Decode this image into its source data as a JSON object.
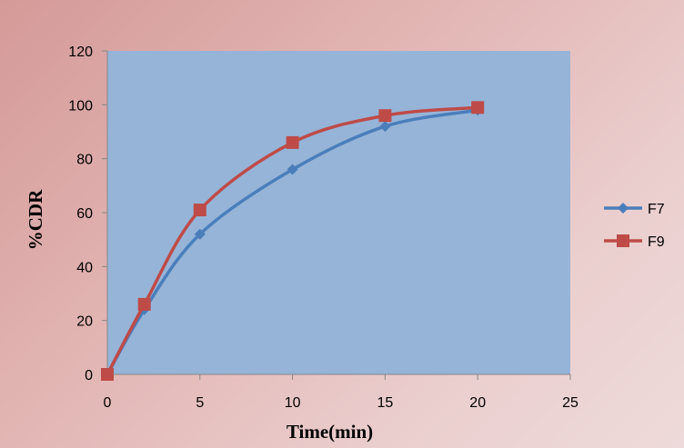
{
  "chart_data": {
    "type": "line",
    "title": "",
    "xlabel": "Time(min)",
    "ylabel": "%CDR",
    "xlim": [
      0,
      25
    ],
    "ylim": [
      0,
      120
    ],
    "xticks": [
      0,
      5,
      10,
      15,
      20,
      25
    ],
    "yticks": [
      0,
      20,
      40,
      60,
      80,
      100,
      120
    ],
    "grid": false,
    "legend_position": "right",
    "plot_background": "#96b4d8",
    "series": [
      {
        "name": "F7",
        "color": "#4a7ebb",
        "marker": "diamond",
        "points": [
          [
            0,
            0
          ],
          [
            2,
            24
          ],
          [
            5,
            52
          ],
          [
            10,
            76
          ],
          [
            15,
            92
          ],
          [
            20,
            98
          ]
        ]
      },
      {
        "name": "F9",
        "color": "#be4b48",
        "marker": "square",
        "points": [
          [
            0,
            0
          ],
          [
            2,
            26
          ],
          [
            5,
            61
          ],
          [
            10,
            86
          ],
          [
            15,
            96
          ],
          [
            20,
            99
          ]
        ]
      }
    ]
  }
}
